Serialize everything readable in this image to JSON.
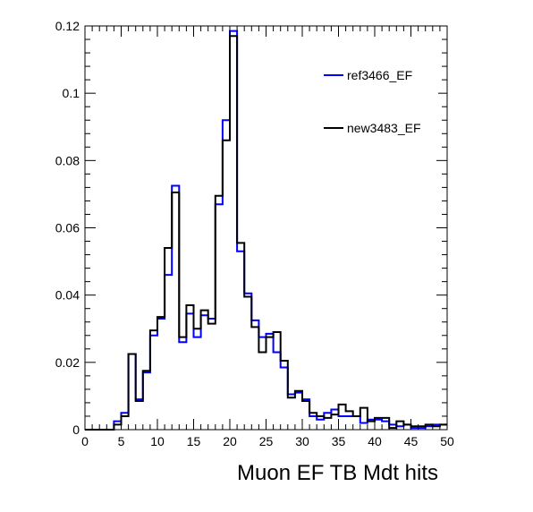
{
  "chart_data": {
    "type": "histogram",
    "title": "",
    "xlabel": "Muon EF TB Mdt hits",
    "ylabel": "",
    "xlim": [
      0,
      50
    ],
    "ylim": [
      0,
      0.12
    ],
    "bin_width": 1,
    "x_ticks": [
      0,
      5,
      10,
      15,
      20,
      25,
      30,
      35,
      40,
      45,
      50
    ],
    "x_tick_labels": [
      "0",
      "5",
      "10",
      "15",
      "20",
      "25",
      "30",
      "35",
      "40",
      "45",
      "50"
    ],
    "y_ticks": [
      0,
      0.02,
      0.04,
      0.06,
      0.08,
      0.1,
      0.12
    ],
    "y_tick_labels": [
      "0",
      "0.02",
      "0.04",
      "0.06",
      "0.08",
      "0.1",
      "0.12"
    ],
    "grid": false,
    "legend_position": "top-right",
    "series": [
      {
        "name": "ref3466_EF",
        "color": "#0000ff",
        "values": [
          0,
          0,
          0,
          0,
          0.0025,
          0.005,
          0.0225,
          0.009,
          0.017,
          0.028,
          0.033,
          0.046,
          0.0725,
          0.026,
          0.0345,
          0.0275,
          0.034,
          0.033,
          0.067,
          0.092,
          0.1185,
          0.053,
          0.0405,
          0.0325,
          0.0275,
          0.0285,
          0.023,
          0.0185,
          0.0105,
          0.011,
          0.009,
          0.004,
          0.003,
          0.005,
          0.006,
          0.004,
          0.004,
          0.004,
          0.002,
          0.003,
          0.003,
          0.0025,
          0.0015,
          0.001,
          0.0015,
          0.0005,
          0.0005,
          0.001,
          0.0015,
          0.0015
        ]
      },
      {
        "name": "new3483_EF",
        "color": "#000000",
        "values": [
          0,
          0,
          0,
          0,
          0.0015,
          0.004,
          0.0225,
          0.0085,
          0.0175,
          0.0295,
          0.0335,
          0.054,
          0.0705,
          0.0275,
          0.037,
          0.03,
          0.0355,
          0.0315,
          0.0695,
          0.086,
          0.117,
          0.0555,
          0.0395,
          0.0305,
          0.023,
          0.0275,
          0.029,
          0.0205,
          0.0095,
          0.0115,
          0.0085,
          0.005,
          0.004,
          0.0035,
          0.0045,
          0.0075,
          0.0055,
          0.004,
          0.0065,
          0.0025,
          0.0035,
          0.0035,
          0.0005,
          0.0025,
          0.0015,
          0.001,
          0.001,
          0.0015,
          0.001,
          0.0015
        ]
      }
    ]
  }
}
